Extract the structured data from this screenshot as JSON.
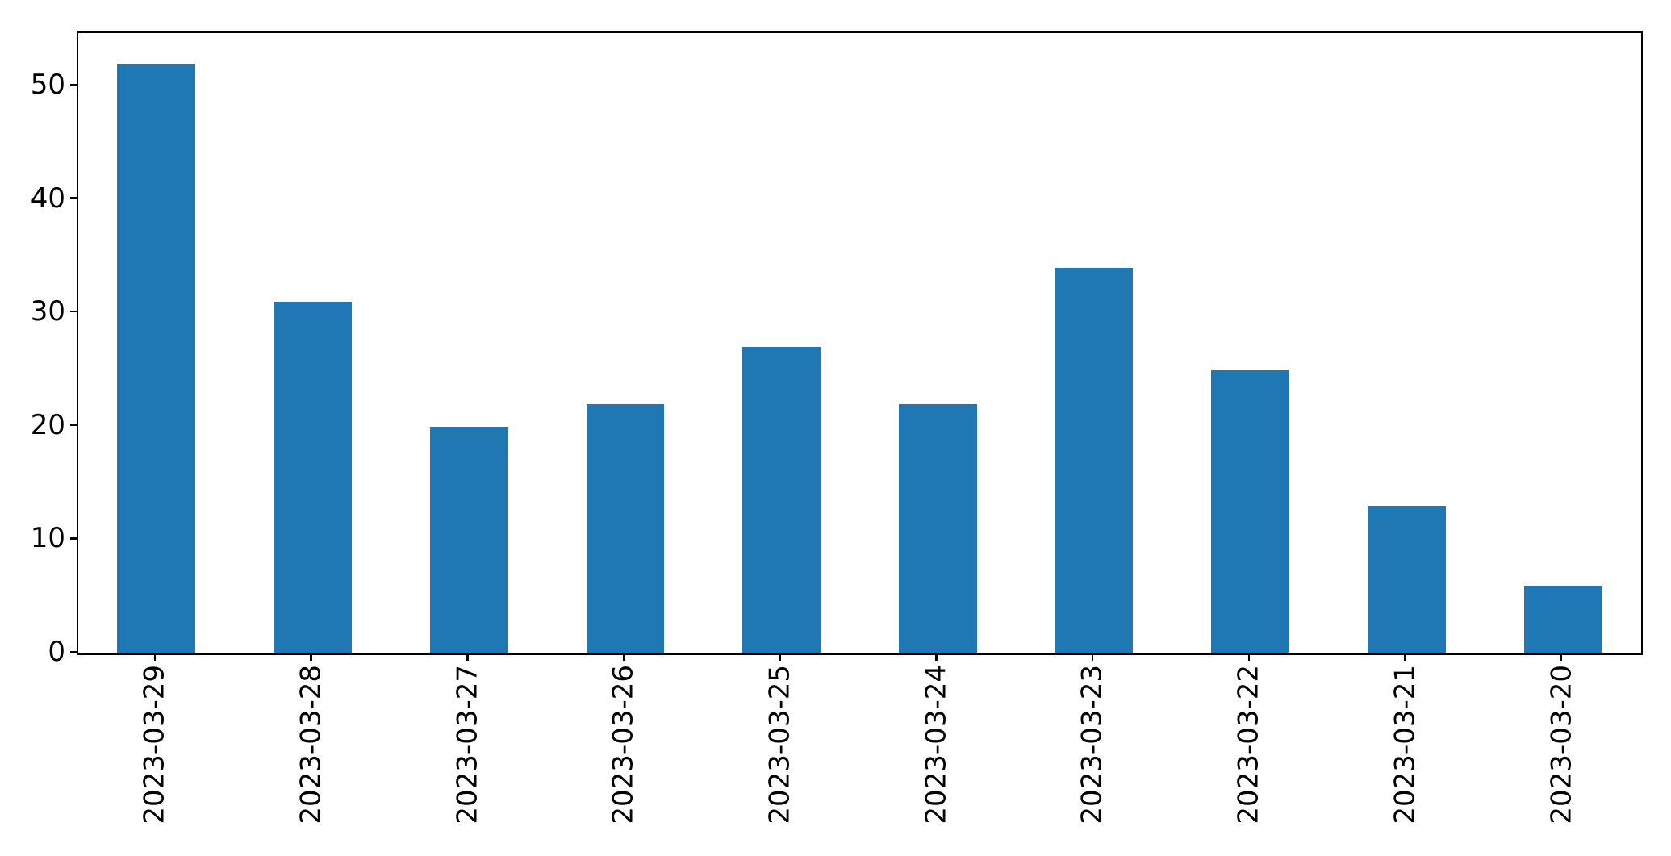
{
  "chart_data": {
    "type": "bar",
    "title": "",
    "xlabel": "",
    "ylabel": "",
    "categories": [
      "2023-03-29",
      "2023-03-28",
      "2023-03-27",
      "2023-03-26",
      "2023-03-25",
      "2023-03-24",
      "2023-03-23",
      "2023-03-22",
      "2023-03-21",
      "2023-03-20"
    ],
    "values": [
      52,
      31,
      20,
      22,
      27,
      22,
      34,
      25,
      13,
      6
    ],
    "ylim": [
      0,
      54.7
    ],
    "yticks": [
      0,
      10,
      20,
      30,
      40,
      50
    ],
    "ytick_labels": [
      "0",
      "10",
      "20",
      "30",
      "40",
      "50"
    ],
    "x_tick_rotation": 90,
    "grid": false,
    "legend": false,
    "bar_color": "#1f77b4",
    "spine_color": "#000000",
    "background_color": "#ffffff",
    "text_color": "#000000"
  }
}
